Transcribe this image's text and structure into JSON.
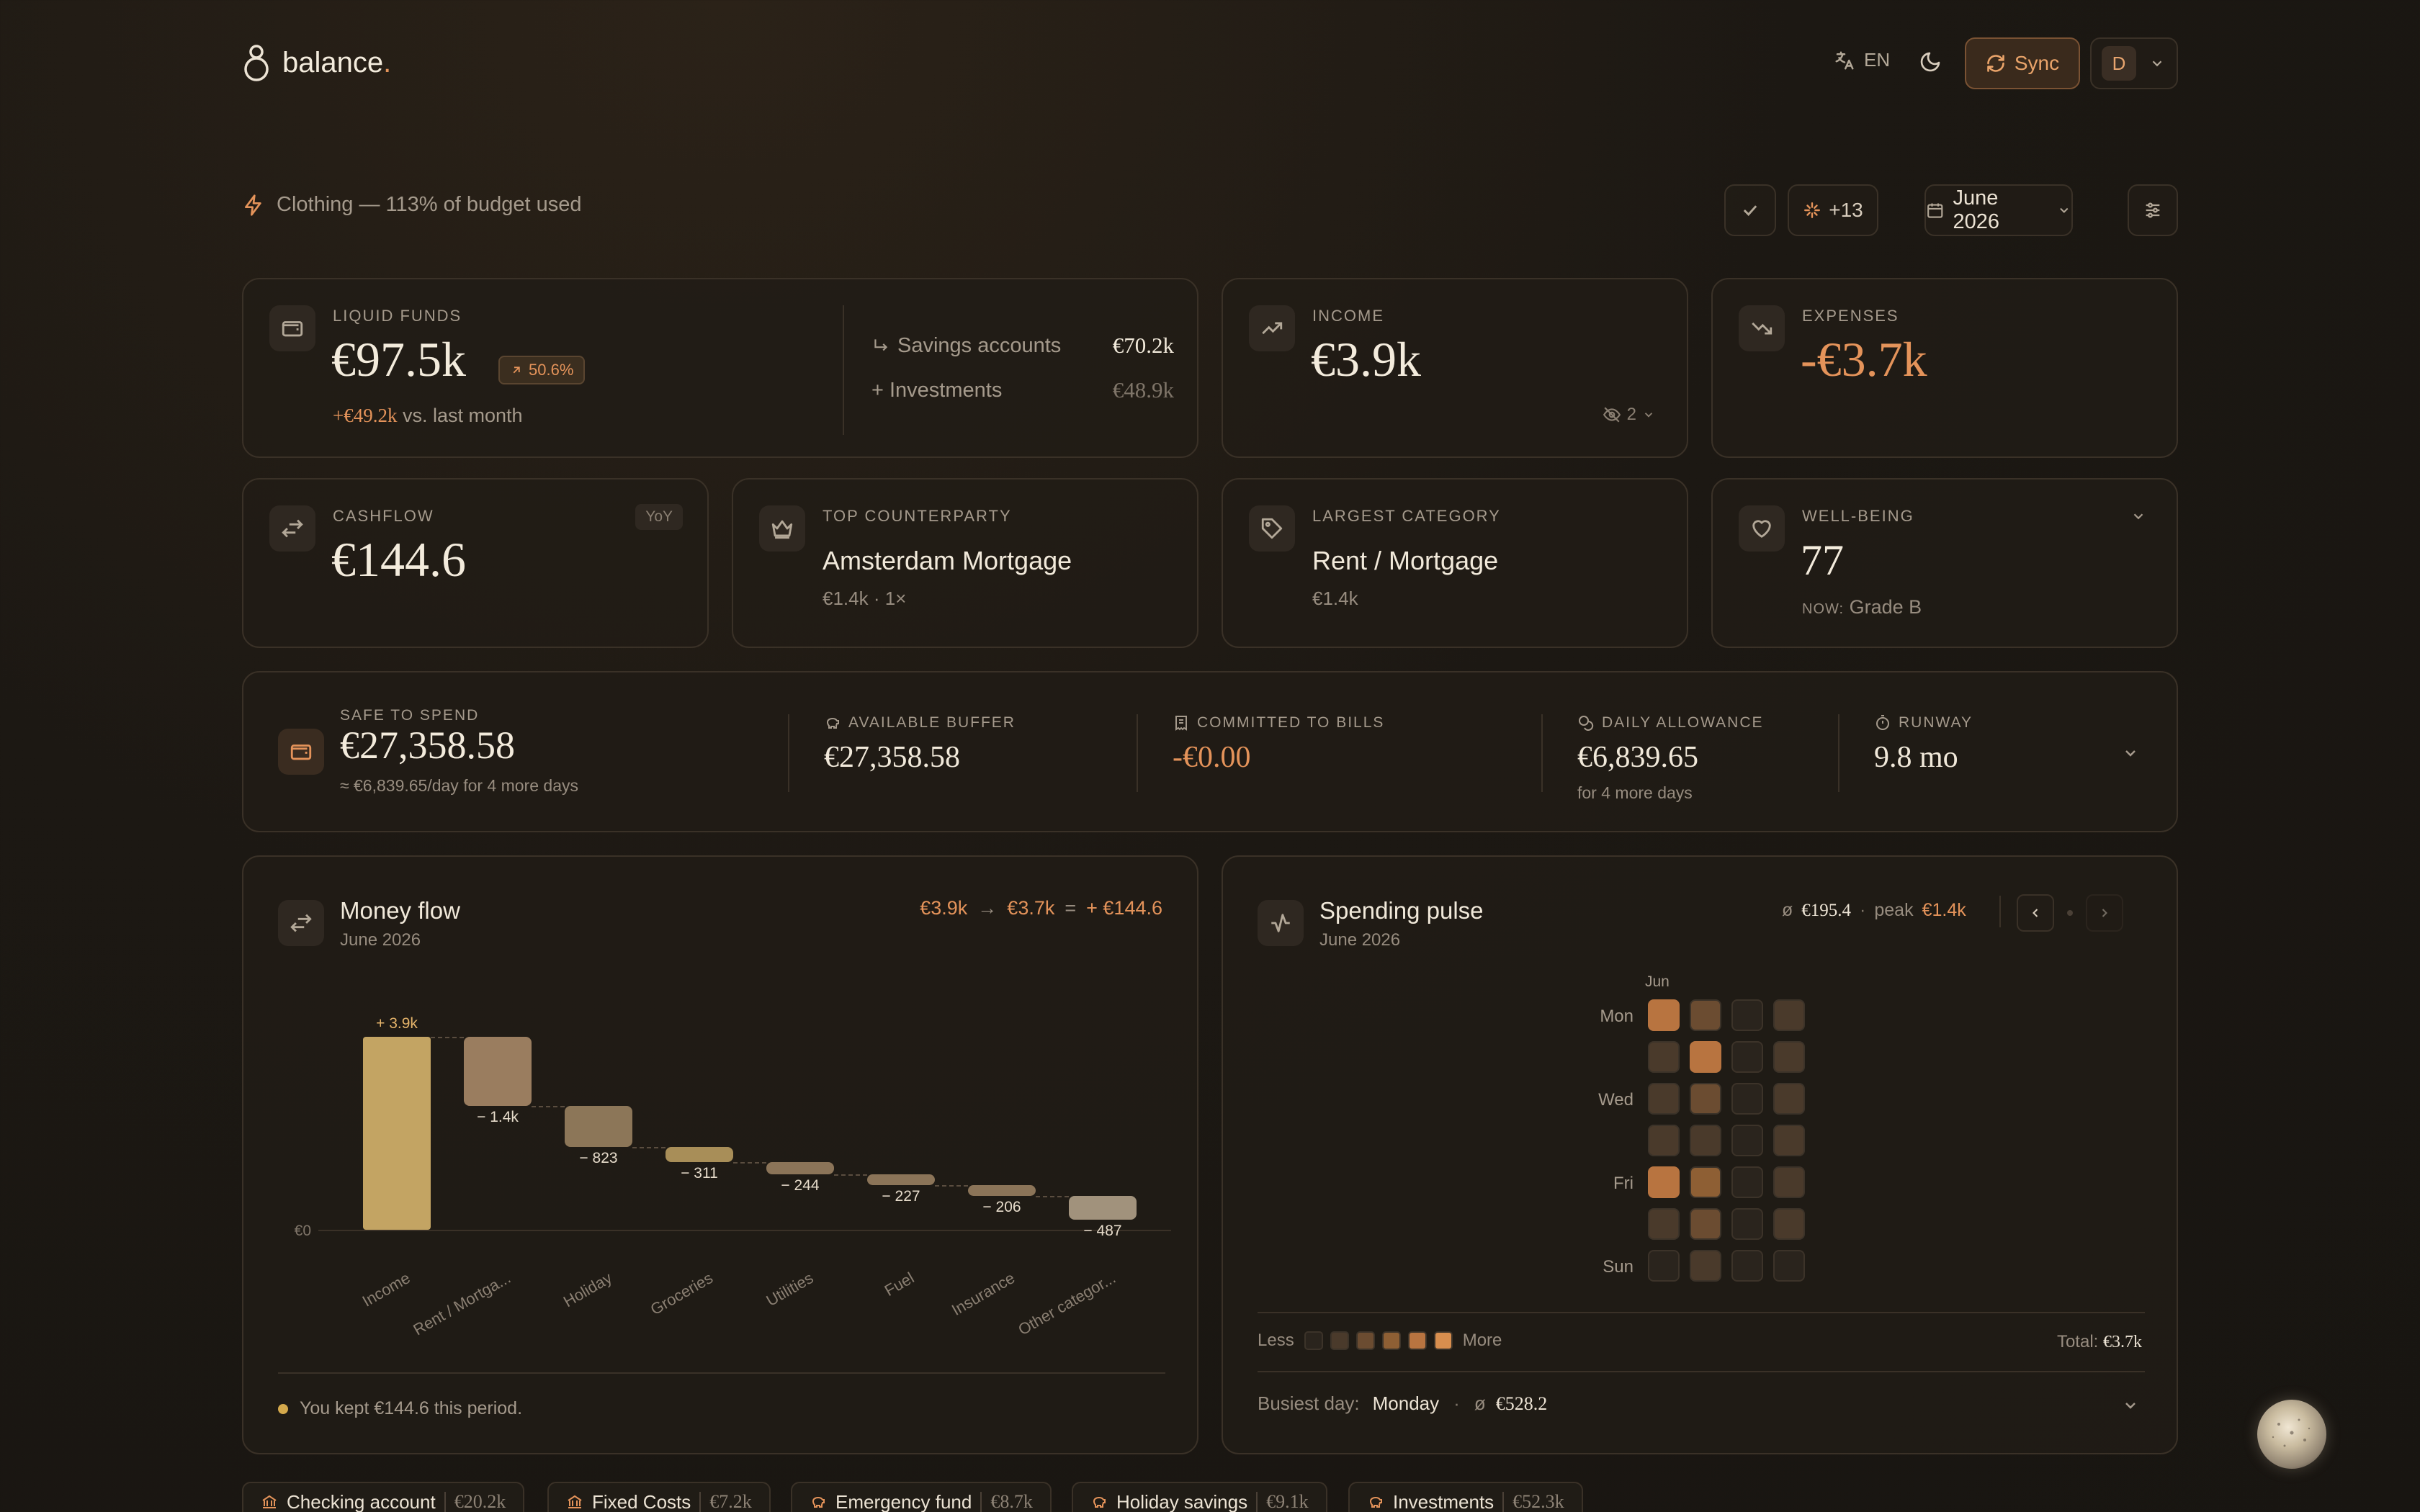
{
  "brand": {
    "name": "balance",
    "dot": "."
  },
  "header": {
    "lang": "EN",
    "sync_label": "Sync",
    "avatar_initial": "D"
  },
  "alert": {
    "text": "Clothing — 113% of budget used"
  },
  "toolbar": {
    "insights_count": "+13",
    "period": "June 2026"
  },
  "liquid": {
    "label": "LIQUID FUNDS",
    "value": "€97.5k",
    "badge": "50.6%",
    "delta": "+€49.2k",
    "delta_suffix": " vs. last month",
    "savings_label": "Savings accounts",
    "savings_value": "€70.2k",
    "investments_label": "+ Investments",
    "investments_value": "€48.9k"
  },
  "income": {
    "label": "INCOME",
    "value": "€3.9k",
    "hidden_count": "2"
  },
  "expenses": {
    "label": "EXPENSES",
    "value": "-€3.7k"
  },
  "cashflow": {
    "label": "CASHFLOW",
    "value": "€144.6",
    "badge": "YoY"
  },
  "counterparty": {
    "label": "TOP COUNTERPARTY",
    "name": "Amsterdam Mortgage",
    "sub": "€1.4k · 1×"
  },
  "category": {
    "label": "LARGEST CATEGORY",
    "name": "Rent / Mortgage",
    "sub": "€1.4k"
  },
  "wellbeing": {
    "label": "WELL-BEING",
    "value": "77",
    "now_label": "NOW:",
    "grade": "Grade B"
  },
  "safe": {
    "label": "SAFE TO SPEND",
    "value": "€27,358.58",
    "sub": "≈ €6,839.65/day for 4 more days",
    "buffer_label": "AVAILABLE BUFFER",
    "buffer_value": "€27,358.58",
    "bills_label": "COMMITTED TO BILLS",
    "bills_value": "-€0.00",
    "daily_label": "DAILY ALLOWANCE",
    "daily_value": "€6,839.65",
    "daily_sub": "for 4 more days",
    "runway_label": "RUNWAY",
    "runway_value": "9.8 mo"
  },
  "moneyflow": {
    "title": "Money flow",
    "period": "June 2026",
    "summary_in": "€3.9k",
    "summary_arrow": "→",
    "summary_out": "€3.7k",
    "summary_eq": "=",
    "summary_net": "+ €144.6",
    "zero_label": "€0",
    "footer": "You kept €144.6 this period."
  },
  "chart_data": {
    "type": "bar",
    "subtype": "waterfall",
    "categories": [
      "Income",
      "Rent / Mortga...",
      "Holiday",
      "Groceries",
      "Utilities",
      "Fuel",
      "Insurance",
      "Other categor..."
    ],
    "values": [
      3900,
      -1400,
      -823,
      -311,
      -244,
      -227,
      -206,
      -487
    ],
    "labels": [
      "+ 3.9k",
      "− 1.4k",
      "− 823",
      "− 311",
      "− 244",
      "− 227",
      "− 206",
      "− 487"
    ],
    "colors": [
      "#c3a463",
      "#9a7d5f",
      "#8c7658",
      "#a88e58",
      "#8b7458",
      "#8b7458",
      "#8b7458",
      "#a1927c"
    ]
  },
  "pulse": {
    "title": "Spending pulse",
    "period": "June 2026",
    "avg_symbol": "ø",
    "avg": "€195.4",
    "dot": "·",
    "peak_label": "peak",
    "peak": "€1.4k",
    "month": "Jun",
    "days": [
      "Mon",
      "",
      "Wed",
      "",
      "Fri",
      "",
      "Sun"
    ],
    "levels": [
      [
        4,
        2,
        0,
        1
      ],
      [
        1,
        4,
        0,
        1
      ],
      [
        1,
        2,
        0,
        1
      ],
      [
        1,
        1,
        0,
        1
      ],
      [
        4,
        3,
        0,
        1
      ],
      [
        1,
        2,
        0,
        1
      ],
      [
        0,
        1,
        0,
        0
      ]
    ],
    "scale_colors": [
      "#2a241d",
      "#4a3a2b",
      "#6b4c31",
      "#8e5f34",
      "#b87440",
      "#d88e4e"
    ],
    "less": "Less",
    "more": "More",
    "total_label": "Total:",
    "total": "€3.7k",
    "busiest_label": "Busiest day:",
    "busiest_day": "Monday",
    "busiest_avg_symbol": "ø",
    "busiest_avg": "€528.2"
  },
  "accounts": [
    {
      "name": "Checking account",
      "amount": "€20.2k",
      "icon": "bank-icon"
    },
    {
      "name": "Fixed Costs",
      "amount": "€7.2k",
      "icon": "bank-icon"
    },
    {
      "name": "Emergency fund",
      "amount": "€8.7k",
      "icon": "piggy-icon"
    },
    {
      "name": "Holiday savings",
      "amount": "€9.1k",
      "icon": "piggy-icon"
    },
    {
      "name": "Investments",
      "amount": "€52.3k",
      "icon": "piggy-icon"
    }
  ]
}
